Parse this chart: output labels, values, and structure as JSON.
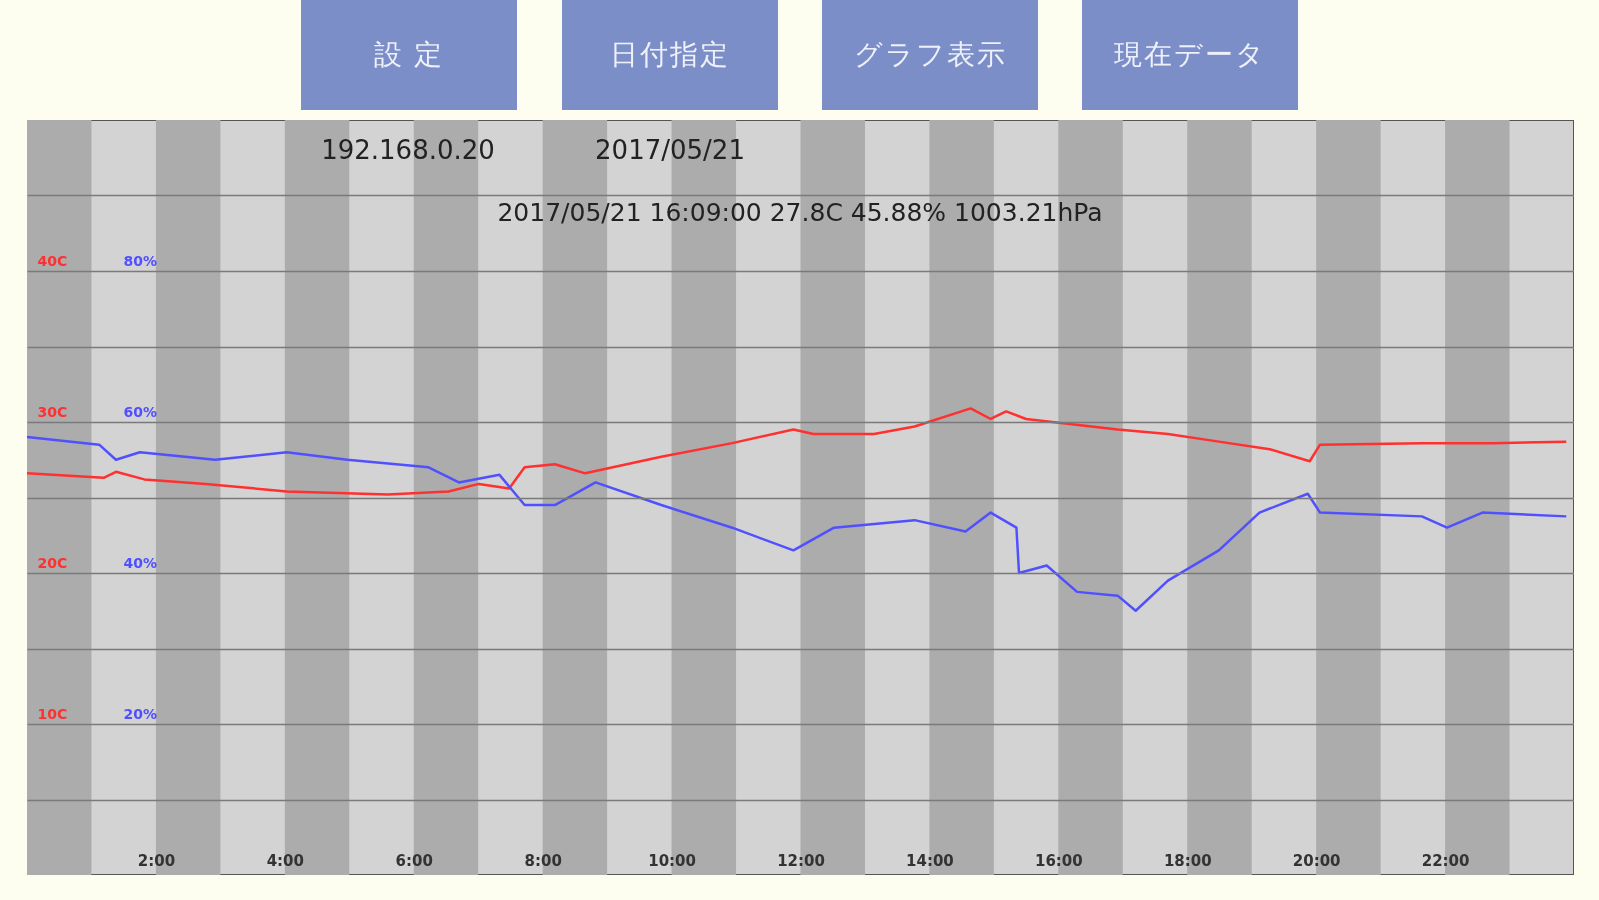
{
  "chart_data": {
    "type": "line",
    "annotations": [
      "設 定",
      "日付指定",
      "グラフ表示",
      "現在データ",
      "192.168.0.20",
      "2017/05/21",
      "2017/05/21 16:09:00 27.8C 45.88% 1003.21hPa"
    ],
    "xlim": [
      0,
      24
    ],
    "xticks": [
      {
        "value": 2,
        "label": "2:00"
      },
      {
        "value": 4,
        "label": "4:00"
      },
      {
        "value": 6,
        "label": "6:00"
      },
      {
        "value": 8,
        "label": "8:00"
      },
      {
        "value": 10,
        "label": "10:00"
      },
      {
        "value": 12,
        "label": "12:00"
      },
      {
        "value": 14,
        "label": "14:00"
      },
      {
        "value": 16,
        "label": "16:00"
      },
      {
        "value": 18,
        "label": "18:00"
      },
      {
        "value": 20,
        "label": "20:00"
      },
      {
        "value": 22,
        "label": "22:00"
      }
    ],
    "ylim": [
      0,
      50
    ],
    "yticks": [
      {
        "value": 5,
        "label": null
      },
      {
        "value": 10,
        "label": "10C"
      },
      {
        "value": 15,
        "label": null
      },
      {
        "value": 20,
        "label": "20C"
      },
      {
        "value": 25,
        "label": null
      },
      {
        "value": 30,
        "label": "30C"
      },
      {
        "value": 35,
        "label": null
      },
      {
        "value": 40,
        "label": "40C"
      },
      {
        "value": 45,
        "label": null
      }
    ],
    "y2lim": [
      0,
      100
    ],
    "y2ticks": [
      {
        "value": 20,
        "label": "20%"
      },
      {
        "value": 40,
        "label": "40%"
      },
      {
        "value": 60,
        "label": "60%"
      },
      {
        "value": 80,
        "label": "80%"
      }
    ],
    "grid": "y",
    "series": [
      {
        "color": "#ff3030",
        "x": [
          0,
          1.19,
          1.38,
          1.82,
          2.77,
          4.03,
          5.6,
          6.54,
          7.01,
          7.48,
          7.72,
          8.19,
          8.66,
          9.84,
          10.94,
          11.89,
          12.2,
          13.14,
          13.77,
          14.64,
          14.95,
          15.19,
          15.5,
          16.92,
          17.7,
          18.49,
          19.28,
          19.9,
          20.06,
          21.64,
          22.74,
          23.88
        ],
        "values": [
          26.6,
          26.3,
          26.7,
          26.2,
          25.9,
          25.4,
          25.2,
          25.4,
          25.9,
          25.6,
          27.0,
          27.2,
          26.6,
          27.7,
          28.6,
          29.5,
          29.2,
          29.2,
          29.7,
          30.9,
          30.2,
          30.7,
          30.2,
          29.5,
          29.2,
          28.7,
          28.2,
          27.4,
          28.5,
          28.6,
          28.6,
          28.7
        ]
      },
      {
        "color": "#5050ff",
        "axis": "y2",
        "x": [
          0,
          1.12,
          1.38,
          1.75,
          2.92,
          4.03,
          4.97,
          6.23,
          6.7,
          7.33,
          7.72,
          8.19,
          8.82,
          9.84,
          10.94,
          11.89,
          12.52,
          13.77,
          14.56,
          14.95,
          15.35,
          15.39,
          15.82,
          16.29,
          16.92,
          17.2,
          17.7,
          18.49,
          19.12,
          19.87,
          20.06,
          21.64,
          22.03,
          22.58,
          23.88
        ],
        "values": [
          58,
          57,
          55,
          56,
          55,
          56,
          55,
          54,
          52,
          53,
          49,
          49,
          52,
          49,
          46,
          43,
          46,
          47,
          45.5,
          48,
          46,
          40,
          41,
          37.5,
          37,
          35,
          39,
          43,
          48,
          50.5,
          48,
          47.5,
          46,
          48,
          47.5
        ]
      }
    ],
    "bands": [
      {
        "axis": "x",
        "from": 0,
        "to": 1,
        "color": "#acacac"
      },
      {
        "axis": "x",
        "from": 2,
        "to": 3,
        "color": "#acacac"
      },
      {
        "axis": "x",
        "from": 4,
        "to": 5,
        "color": "#acacac"
      },
      {
        "axis": "x",
        "from": 6,
        "to": 7,
        "color": "#acacac"
      },
      {
        "axis": "x",
        "from": 8,
        "to": 9,
        "color": "#acacac"
      },
      {
        "axis": "x",
        "from": 10,
        "to": 11,
        "color": "#acacac"
      },
      {
        "axis": "x",
        "from": 12,
        "to": 13,
        "color": "#acacac"
      },
      {
        "axis": "x",
        "from": 14,
        "to": 15,
        "color": "#acacac"
      },
      {
        "axis": "x",
        "from": 16,
        "to": 17,
        "color": "#acacac"
      },
      {
        "axis": "x",
        "from": 18,
        "to": 19,
        "color": "#acacac"
      },
      {
        "axis": "x",
        "from": 20,
        "to": 21,
        "color": "#acacac"
      },
      {
        "axis": "x",
        "from": 22,
        "to": 23,
        "color": "#acacac"
      }
    ]
  }
}
